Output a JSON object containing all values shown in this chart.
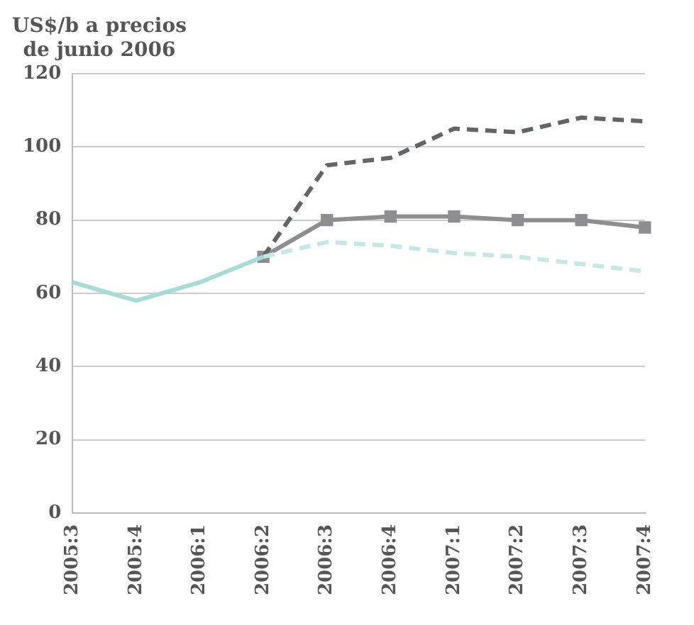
{
  "chart_data": {
    "type": "line",
    "ylabel": "US$/b a precios\nde junio 2006",
    "categories": [
      "2005:3",
      "2005:4",
      "2006:1",
      "2006:2",
      "2006:3",
      "2006:4",
      "2007:1",
      "2007:2",
      "2007:3",
      "2007:4"
    ],
    "ylim": [
      0,
      120
    ],
    "yticks": [
      0,
      20,
      40,
      60,
      80,
      100,
      120
    ],
    "grid": "y",
    "legend": false,
    "series": [
      {
        "color": "#a6dbd6",
        "values": [
          63,
          58,
          63,
          70,
          null,
          null,
          null,
          null,
          null,
          null
        ],
        "line_style": "solid",
        "marker": "none"
      },
      {
        "color": "#c6e8e4",
        "values": [
          null,
          null,
          null,
          70,
          74,
          73,
          71,
          70,
          68,
          66
        ],
        "line_style": "dashed",
        "marker": "none"
      },
      {
        "color": "#636466",
        "values": [
          null,
          null,
          null,
          70,
          95,
          97,
          105,
          104,
          108,
          107
        ],
        "line_style": "dashed",
        "marker": "none"
      },
      {
        "color": "#8e8e90",
        "values": [
          null,
          null,
          null,
          70,
          80,
          81,
          81,
          80,
          80,
          78
        ],
        "line_style": "solid",
        "marker": "square"
      }
    ]
  }
}
